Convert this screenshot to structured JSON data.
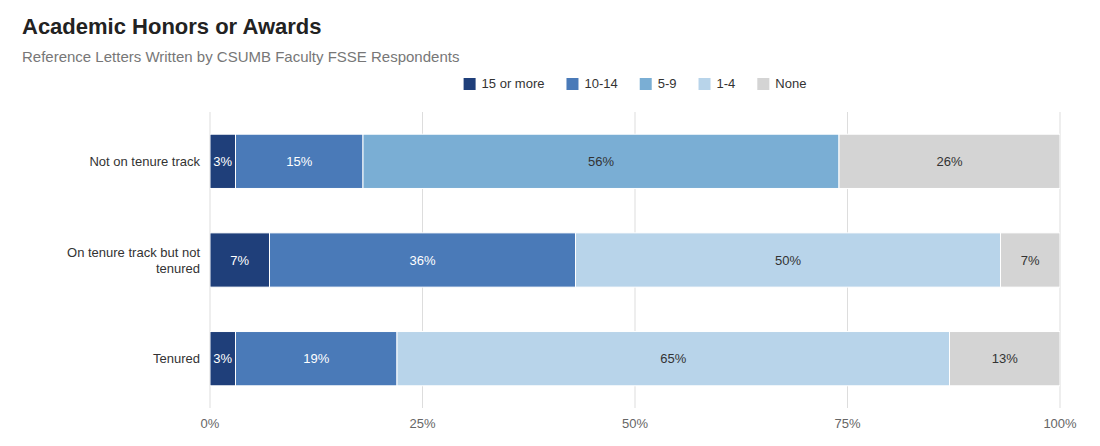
{
  "chart_data": {
    "type": "bar",
    "orientation": "horizontal",
    "stacked": true,
    "data_labels": true,
    "grid": true,
    "legend": "top",
    "title": "Academic Honors or Awards",
    "subtitle": "Reference Letters Written by CSUMB Faculty FSSE Respondents",
    "categories": [
      "Not on tenure track",
      "On tenure track but not\ntenured",
      "Tenured"
    ],
    "series": [
      {
        "name": "15 or more",
        "color": "#1f3f7a",
        "values": [
          3,
          7,
          3
        ],
        "value_labels": [
          "3%",
          "7%",
          "3%"
        ]
      },
      {
        "name": "10-14",
        "color": "#4a7ab8",
        "values": [
          15,
          36,
          19
        ],
        "value_labels": [
          "15%",
          "36%",
          "19%"
        ]
      },
      {
        "name": "5-9",
        "color": "#7aaed4",
        "values": [
          56,
          0,
          0
        ],
        "value_labels": [
          "56%",
          null,
          null
        ]
      },
      {
        "name": "1-4",
        "color": "#b8d4ea",
        "values": [
          0,
          50,
          65
        ],
        "value_labels": [
          null,
          "50%",
          "65%"
        ]
      },
      {
        "name": "None",
        "color": "#d4d4d4",
        "values": [
          26,
          7,
          13
        ],
        "value_labels": [
          "26%",
          "7%",
          "13%"
        ]
      }
    ],
    "xlim": [
      0,
      100
    ],
    "xticks": [
      {
        "value": 0,
        "label": "0%"
      },
      {
        "value": 25,
        "label": "25%"
      },
      {
        "value": 50,
        "label": "50%"
      },
      {
        "value": 75,
        "label": "75%"
      },
      {
        "value": 100,
        "label": "100%"
      }
    ]
  }
}
